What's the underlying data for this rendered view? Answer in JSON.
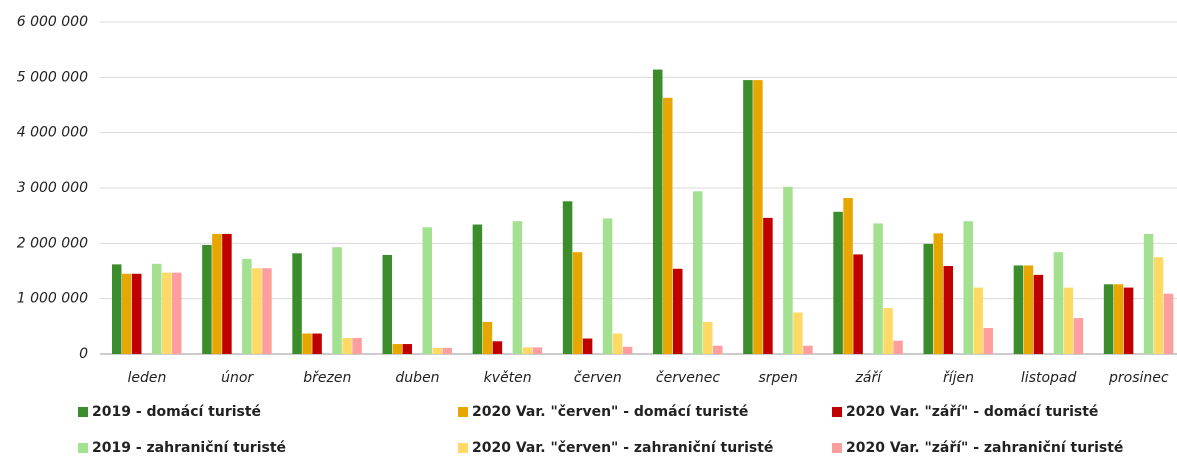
{
  "chart_data": {
    "type": "bar",
    "categories": [
      "leden",
      "únor",
      "březen",
      "duben",
      "květen",
      "červen",
      "červenec",
      "srpen",
      "září",
      "říjen",
      "listopad",
      "prosinec"
    ],
    "series": [
      {
        "name": "2019 - domácí turisté",
        "color": "#3b8c2a",
        "values": [
          1620000,
          1970000,
          1820000,
          1790000,
          2340000,
          2760000,
          5140000,
          4950000,
          2570000,
          1990000,
          1600000,
          1260000
        ]
      },
      {
        "name": "2020 Var. \"červen\" - domácí turisté",
        "color": "#e8a600",
        "values": [
          1450000,
          2170000,
          370000,
          180000,
          580000,
          1840000,
          4630000,
          4950000,
          2820000,
          2180000,
          1600000,
          1260000
        ]
      },
      {
        "name": "2020 Var. \"září\" - domácí turisté",
        "color": "#c00000",
        "values": [
          1450000,
          2170000,
          370000,
          180000,
          230000,
          280000,
          1540000,
          2460000,
          1800000,
          1590000,
          1430000,
          1200000
        ]
      },
      {
        "name": "2019 - zahraniční turisté",
        "color": "#a3e08f",
        "values": [
          1630000,
          1720000,
          1930000,
          2290000,
          2400000,
          2450000,
          2940000,
          3020000,
          2360000,
          2400000,
          1840000,
          2170000
        ]
      },
      {
        "name": "2020 Var. \"červen\" - zahraniční turisté",
        "color": "#ffd966",
        "values": [
          1470000,
          1550000,
          290000,
          110000,
          120000,
          370000,
          580000,
          750000,
          830000,
          1200000,
          1200000,
          1750000
        ]
      },
      {
        "name": "2020 Var. \"září\" - zahraniční turisté",
        "color": "#ff9e9e",
        "values": [
          1470000,
          1550000,
          290000,
          110000,
          120000,
          130000,
          150000,
          150000,
          240000,
          470000,
          650000,
          1090000
        ]
      }
    ],
    "ylim": [
      0,
      6000000
    ],
    "yticks": [
      0,
      {
        "value": 1000000,
        "label": "1 000 000"
      },
      {
        "value": 2000000,
        "label": "2 000 000"
      },
      {
        "value": 3000000,
        "label": "3 000 000"
      },
      {
        "value": 4000000,
        "label": "4 000 000"
      },
      {
        "value": 5000000,
        "label": "5 000 000"
      },
      {
        "value": 6000000,
        "label": "6 000 000"
      }
    ],
    "grid": true
  }
}
